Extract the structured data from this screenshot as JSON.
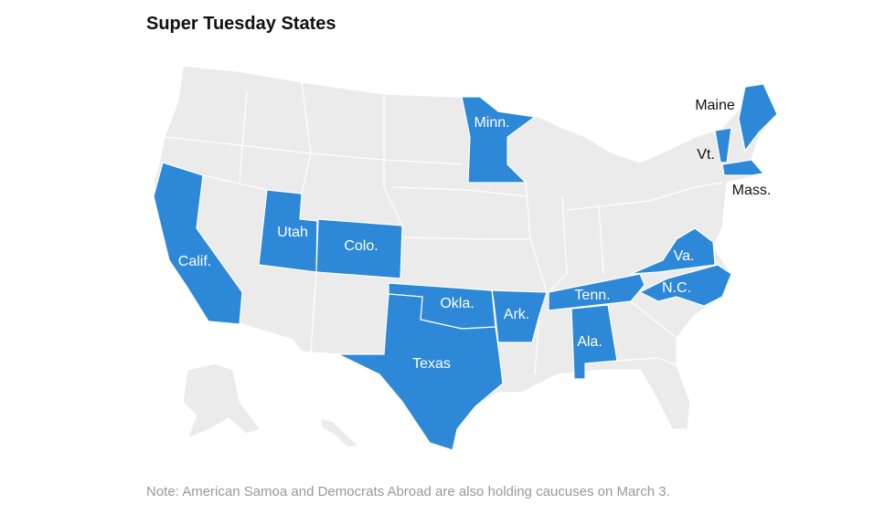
{
  "title": "Super Tuesday States",
  "states": [
    {
      "label": "Calif."
    },
    {
      "label": "Utah"
    },
    {
      "label": "Colo."
    },
    {
      "label": "Minn."
    },
    {
      "label": "Maine"
    },
    {
      "label": "Vt."
    },
    {
      "label": "Mass."
    },
    {
      "label": "Va."
    },
    {
      "label": "N.C."
    },
    {
      "label": "Tenn."
    },
    {
      "label": "Okla."
    },
    {
      "label": "Ark."
    },
    {
      "label": "Ala."
    },
    {
      "label": "Texas"
    }
  ],
  "note": "Note: American Samoa and Democrats Abroad are also holding caucuses on March 3."
}
